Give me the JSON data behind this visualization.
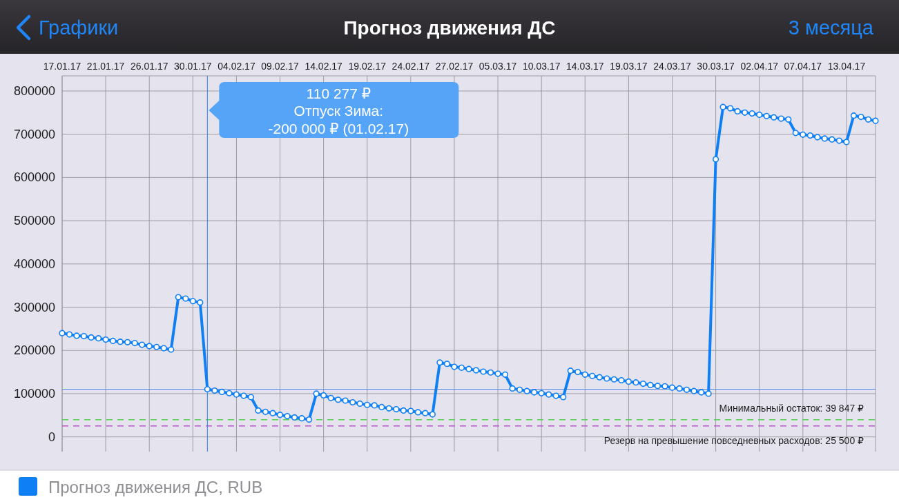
{
  "chart_data": {
    "type": "line",
    "title": "Прогноз движения ДС",
    "categories": [
      "17.01.17",
      null,
      null,
      null,
      null,
      null,
      "21.01.17",
      null,
      null,
      null,
      null,
      null,
      "26.01.17",
      null,
      null,
      null,
      null,
      null,
      "30.01.17",
      null,
      null,
      null,
      null,
      null,
      "04.02.17",
      null,
      null,
      null,
      null,
      null,
      "09.02.17",
      null,
      null,
      null,
      null,
      null,
      "14.02.17",
      null,
      null,
      null,
      null,
      null,
      "19.02.17",
      null,
      null,
      null,
      null,
      null,
      "24.02.17",
      null,
      null,
      null,
      null,
      null,
      "27.02.17",
      null,
      null,
      null,
      null,
      null,
      "05.03.17",
      null,
      null,
      null,
      null,
      null,
      "10.03.17",
      null,
      null,
      null,
      null,
      null,
      "14.03.17",
      null,
      null,
      null,
      null,
      null,
      "19.03.17",
      null,
      null,
      null,
      null,
      null,
      "24.03.17",
      null,
      null,
      null,
      null,
      null,
      "30.03.17",
      null,
      null,
      null,
      null,
      null,
      "02.04.17",
      null,
      null,
      null,
      null,
      null,
      "07.04.17",
      null,
      null,
      null,
      null,
      null,
      "13.04.17",
      null,
      null,
      null,
      null
    ],
    "series": [
      {
        "name": "Прогноз движения ДС, RUB",
        "color": "#0f7ff5",
        "values": [
          240000,
          237000,
          234000,
          233000,
          230000,
          228000,
          225000,
          222000,
          220000,
          219000,
          217000,
          213000,
          210000,
          208000,
          205000,
          202000,
          323000,
          320000,
          314000,
          311000,
          110277,
          107000,
          104000,
          101000,
          98000,
          95000,
          92000,
          61000,
          58000,
          55000,
          51000,
          48000,
          45000,
          43000,
          40000,
          100000,
          96000,
          90000,
          86000,
          84000,
          80000,
          77000,
          74000,
          73000,
          69000,
          66000,
          64000,
          61000,
          60000,
          57000,
          55000,
          52000,
          172000,
          169000,
          162000,
          160000,
          157000,
          154000,
          151000,
          149000,
          146000,
          144000,
          112000,
          109000,
          106000,
          103000,
          101000,
          98000,
          95000,
          92000,
          153000,
          150000,
          144000,
          141000,
          138000,
          135000,
          133000,
          131000,
          128000,
          126000,
          123000,
          120000,
          118000,
          117000,
          114000,
          112000,
          109000,
          106000,
          103000,
          100000,
          642000,
          763000,
          760000,
          753000,
          750000,
          748000,
          745000,
          742000,
          739000,
          736000,
          734000,
          703000,
          699000,
          697000,
          693000,
          690000,
          688000,
          685000,
          682000,
          743000,
          740000,
          734000,
          731000
        ]
      }
    ],
    "ylim": [
      -34000,
      835000
    ],
    "yticks": [
      0,
      100000,
      200000,
      300000,
      400000,
      500000,
      600000,
      700000,
      800000
    ],
    "ref_lines": [
      {
        "axis": "y",
        "value": 110277,
        "color": "#4a86e8"
      },
      {
        "axis": "y",
        "value": 39847,
        "label": "Минимальный остаток: 39 847 ₽",
        "color": "#5ad15a",
        "line_style": "dashed"
      },
      {
        "axis": "y",
        "value": 25500,
        "label": "Резерв на превышение повседневных расходов: 25 500 ₽",
        "color": "#b956c9",
        "line_style": "dashed"
      }
    ],
    "annotations": [
      "Графики",
      "3 месяца",
      "110 277 ₽\nОтпуск Зима:\n-200 000 ₽ (01.02.17)"
    ],
    "grid": true,
    "legend": "bottom",
    "marker": "circle",
    "line_style": "solid"
  }
}
